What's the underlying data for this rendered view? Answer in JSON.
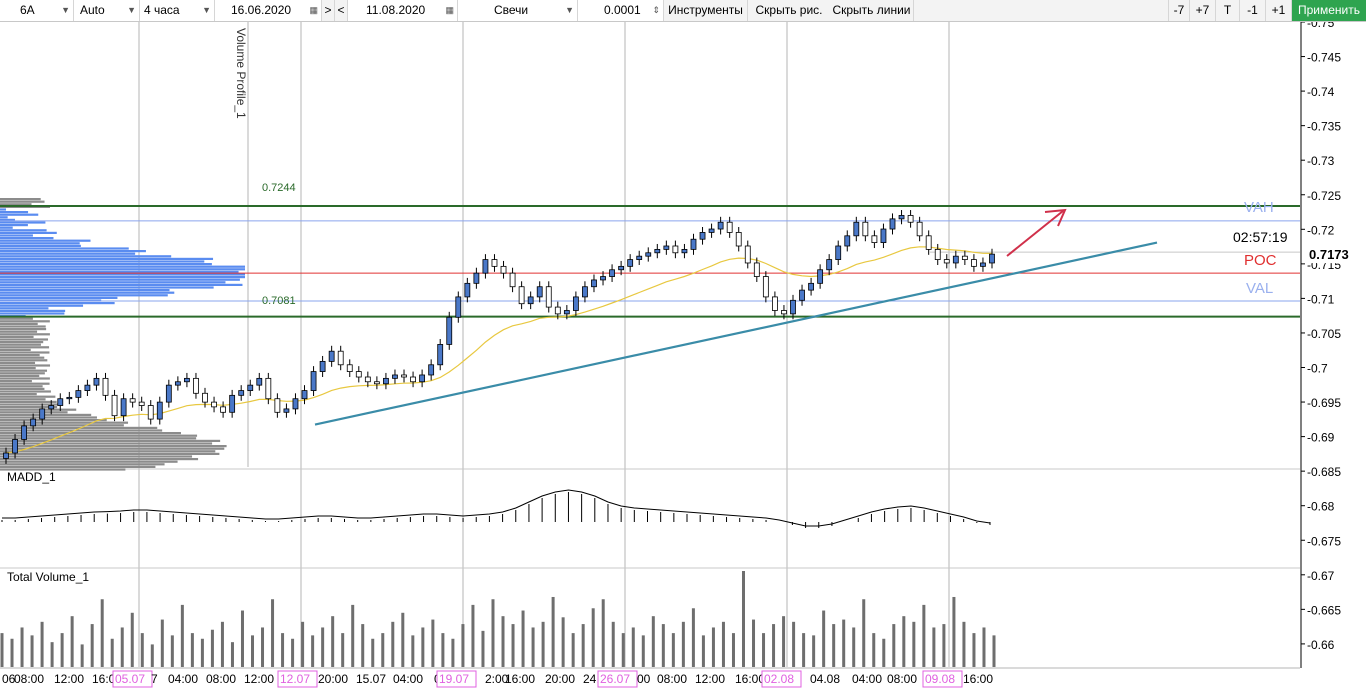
{
  "toolbar": {
    "symbol": "6A",
    "mode": "Auto",
    "timeframe": "4 часа",
    "date_from": "16.06.2020",
    "nav_forward": ">",
    "nav_back": "<",
    "date_to": "11.08.2020",
    "chart_type": "Свечи",
    "step": "0.0001",
    "instruments": "Инструменты",
    "hide_drawings": "Скрыть рис.",
    "hide_lines": "Скрыть линии",
    "minus7": "-7",
    "plus7": "+7",
    "t": "T",
    "minus1": "-1",
    "plus1": "+1",
    "apply": "Применить"
  },
  "colors": {
    "accent_green": "#2ea44f",
    "candle_up": "#4a78c8",
    "ma_line": "#e8c840",
    "trend_line": "#3a8ca8",
    "arrow": "#d0304a",
    "poc": "#e03030",
    "value_area": "#8aa4ee",
    "profile": "#5a8cf0",
    "profile_grey": "#8c8c8c",
    "date_highlight": "#e060e0"
  },
  "chart_data": {
    "type": "candlestick",
    "instrument": "6A",
    "timeframe": "4 часа",
    "price_ylim": [
      0.6855,
      0.7515
    ],
    "y_ticks": [
      "0.75",
      "0.745",
      "0.74",
      "0.735",
      "0.73",
      "0.725",
      "0.72",
      "0.715",
      "0.71",
      "0.705",
      "0.7",
      "0.695",
      "0.69",
      "0.685",
      "0.68",
      "0.675",
      "0.67",
      "0.665",
      "0.66"
    ],
    "x_ticks": [
      "06",
      "08:00",
      "12:00",
      "16:00",
      "05.07",
      "7",
      "04:00",
      "08:00",
      "12:00",
      "12.07",
      "20:00",
      "15.07",
      "04:00",
      "0",
      "19.07",
      "2:00",
      "16:00",
      "20:00",
      "24.",
      "26.07",
      "00",
      "08:00",
      "12:00",
      "16:00",
      "02.08",
      "04.08",
      "04:00",
      "08:00",
      "09.08",
      "16:00"
    ],
    "highlight_dates": [
      "05.07",
      "12.07",
      "19.07",
      "26.07",
      "02.08",
      "09.08"
    ],
    "volume_profile": {
      "name": "Volume Profile_1",
      "high_label": "0.7244",
      "low_label": "0.7081",
      "vah_label": "VAH",
      "poc_label": "POC",
      "val_label": "VAL",
      "high": 0.7244,
      "low": 0.7081,
      "vah": 0.7222,
      "poc": 0.7145,
      "val": 0.7104
    },
    "current_price": "0.7173",
    "current_price_value": 0.7173,
    "countdown": "02:57:19",
    "ohlc_closes": [
      0.688,
      0.69,
      0.692,
      0.693,
      0.6945,
      0.695,
      0.696,
      0.6962,
      0.6972,
      0.698,
      0.699,
      0.6965,
      0.6935,
      0.696,
      0.6955,
      0.695,
      0.693,
      0.6955,
      0.698,
      0.6985,
      0.699,
      0.6968,
      0.6955,
      0.6948,
      0.694,
      0.6965,
      0.6972,
      0.698,
      0.699,
      0.696,
      0.694,
      0.6945,
      0.696,
      0.6972,
      0.7,
      0.7015,
      0.703,
      0.701,
      0.7,
      0.6992,
      0.6985,
      0.6982,
      0.699,
      0.6995,
      0.6992,
      0.6985,
      0.6995,
      0.701,
      0.704,
      0.708,
      0.711,
      0.713,
      0.7145,
      0.7165,
      0.7155,
      0.7145,
      0.7125,
      0.71,
      0.711,
      0.7125,
      0.7095,
      0.7085,
      0.709,
      0.711,
      0.7125,
      0.7135,
      0.714,
      0.715,
      0.7155,
      0.7165,
      0.717,
      0.7175,
      0.718,
      0.7185,
      0.7175,
      0.718,
      0.7195,
      0.7205,
      0.721,
      0.722,
      0.7205,
      0.7185,
      0.716,
      0.714,
      0.711,
      0.709,
      0.7085,
      0.7105,
      0.712,
      0.713,
      0.715,
      0.7165,
      0.7185,
      0.72,
      0.722,
      0.72,
      0.719,
      0.721,
      0.7225,
      0.723,
      0.722,
      0.72,
      0.718,
      0.7165,
      0.716,
      0.717,
      0.7165,
      0.7155,
      0.716,
      0.7173
    ],
    "ma_name": "MA",
    "ma_start": 0.689,
    "ma_end": 0.7168,
    "trend_line": {
      "p1": [
        0.6922
      ],
      "p2": [
        0.719
      ]
    },
    "indicators": [
      {
        "name": "MADD_1"
      },
      {
        "name": "Total Volume_1"
      }
    ],
    "macd_hist": [
      0.1,
      0.1,
      0.15,
      0.2,
      0.25,
      0.3,
      0.35,
      0.4,
      0.42,
      0.45,
      0.5,
      0.5,
      0.45,
      0.4,
      0.35,
      0.3,
      0.25,
      0.2,
      0.15,
      0.1,
      0.05,
      0.05,
      0.1,
      0.15,
      0.2,
      0.2,
      0.15,
      0.1,
      0.1,
      0.15,
      0.2,
      0.25,
      0.3,
      0.3,
      0.25,
      0.2,
      0.25,
      0.3,
      0.4,
      0.6,
      0.9,
      1.2,
      1.4,
      1.5,
      1.4,
      1.2,
      0.9,
      0.7,
      0.6,
      0.55,
      0.5,
      0.45,
      0.4,
      0.35,
      0.3,
      0.25,
      0.2,
      0.15,
      0.1,
      0.0,
      -0.15,
      -0.3,
      -0.3,
      -0.2,
      0.0,
      0.2,
      0.4,
      0.55,
      0.65,
      0.7,
      0.6,
      0.45,
      0.3,
      0.15,
      -0.05,
      -0.15
    ],
    "volumes": [
      30,
      25,
      35,
      28,
      40,
      22,
      30,
      45,
      20,
      38,
      60,
      25,
      35,
      48,
      30,
      20,
      42,
      28,
      55,
      30,
      25,
      33,
      40,
      22,
      50,
      28,
      35,
      60,
      30,
      25,
      40,
      28,
      35,
      45,
      30,
      55,
      38,
      25,
      30,
      40,
      48,
      28,
      35,
      42,
      30,
      25,
      38,
      55,
      32,
      60,
      45,
      38,
      50,
      35,
      40,
      62,
      44,
      30,
      38,
      52,
      60,
      40,
      30,
      35,
      28,
      45,
      38,
      30,
      40,
      52,
      28,
      35,
      40,
      30,
      85,
      42,
      30,
      38,
      45,
      40,
      30,
      28,
      50,
      38,
      42,
      35,
      60,
      30,
      25,
      38,
      45,
      40,
      55,
      35,
      38,
      62,
      40,
      30,
      35,
      28
    ]
  }
}
